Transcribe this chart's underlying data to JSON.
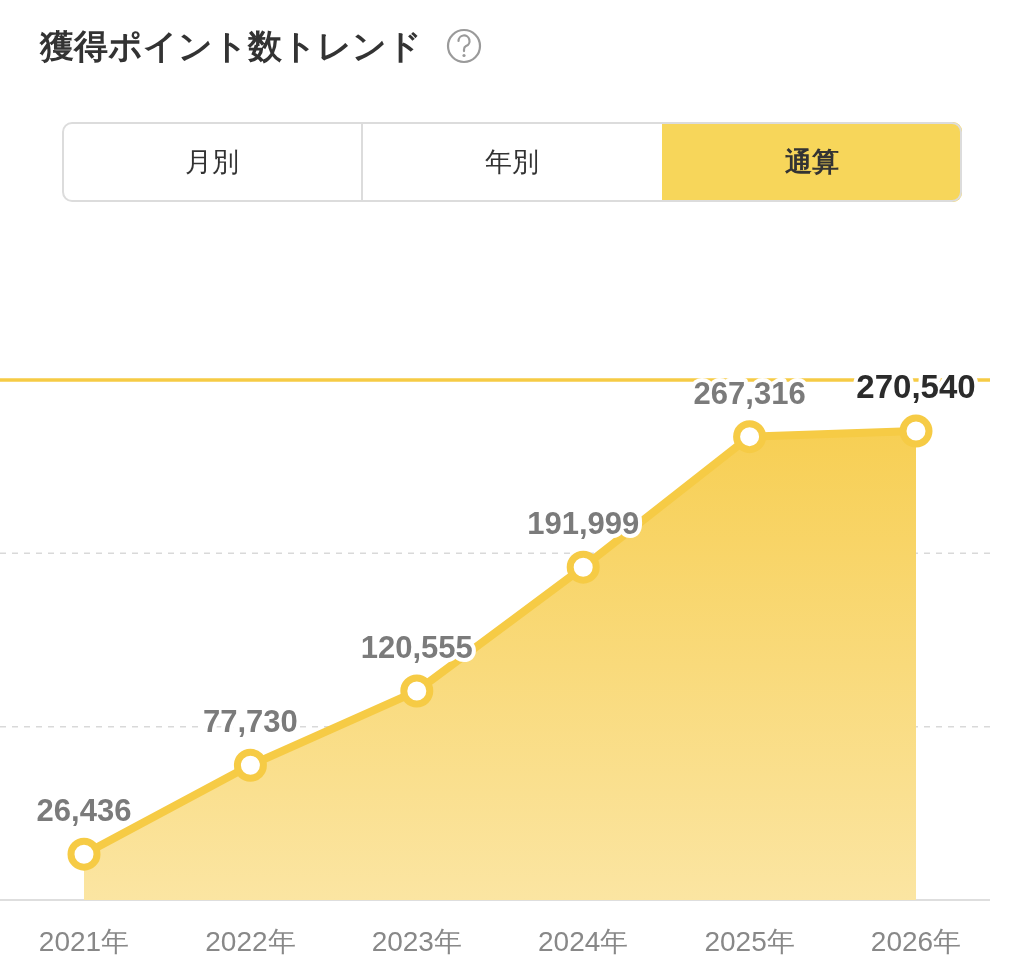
{
  "chart_data": [
    {
      "type": "other",
      "title": "獲得ポイント数トレンド",
      "categories": [
        "月別",
        "年別",
        "通算"
      ],
      "colors": [
        "#ffffff",
        "#ffffff",
        "#f7d65a"
      ]
    },
    {
      "type": "area",
      "categories": [
        "2021年",
        "2022年",
        "2023年",
        "2024年",
        "2025年",
        "2026年"
      ],
      "series": [
        {
          "color": "#f6cb45",
          "values": [
            26436,
            77730,
            120555,
            191999,
            267316,
            270540
          ],
          "value_labels": [
            "26,436",
            "77,730",
            "120,555",
            "191,999",
            "267,316",
            "270,540"
          ]
        }
      ],
      "ref_lines": [
        {
          "axis": "y",
          "value": 100000,
          "color": "#d9d9d9",
          "line_style": "dashed"
        },
        {
          "axis": "y",
          "value": 200000,
          "color": "#d9d9d9",
          "line_style": "dashed"
        },
        {
          "axis": "y",
          "value": 300000,
          "color": "#f6cb45"
        }
      ],
      "tick_labels": "x",
      "marker": "circle"
    }
  ]
}
